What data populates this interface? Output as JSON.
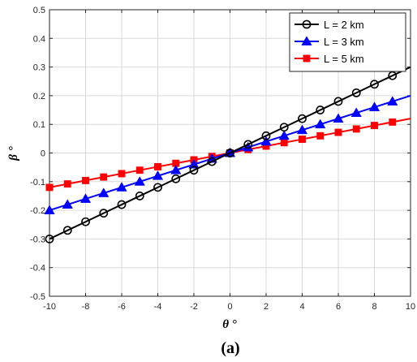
{
  "caption": "(a)",
  "chart_data": {
    "type": "line",
    "xlabel": "θ °",
    "ylabel": "β °",
    "xlim": [
      -10,
      10
    ],
    "ylim": [
      -0.5,
      0.5
    ],
    "xticks": [
      -10,
      -8,
      -6,
      -4,
      -2,
      0,
      2,
      4,
      6,
      8,
      10
    ],
    "yticks": [
      -0.5,
      -0.4,
      -0.3,
      -0.2,
      -0.1,
      0,
      0.1,
      0.2,
      0.3,
      0.4,
      0.5
    ],
    "xtick_labels": [
      "-10",
      "-8",
      "-6",
      "-4",
      "-2",
      "0",
      "2",
      "4",
      "6",
      "8",
      "10"
    ],
    "ytick_labels": [
      "-0.5",
      "-0.4",
      "-0.3",
      "-0.2",
      "-0.1",
      "0",
      "0.1",
      "0.2",
      "0.3",
      "0.4",
      "0.5"
    ],
    "grid": true,
    "legend_position": "top-right",
    "series": [
      {
        "name": "L = 2 km",
        "color": "#000000",
        "marker": "circle",
        "x": [
          -10,
          -9,
          -8,
          -7,
          -6,
          -5,
          -4,
          -3,
          -2,
          -1,
          0,
          1,
          2,
          3,
          4,
          5,
          6,
          7,
          8,
          9,
          10
        ],
        "y": [
          -0.3,
          -0.27,
          -0.24,
          -0.21,
          -0.18,
          -0.15,
          -0.12,
          -0.09,
          -0.06,
          -0.03,
          0,
          0.03,
          0.06,
          0.09,
          0.12,
          0.15,
          0.18,
          0.21,
          0.24,
          0.27,
          0.3
        ],
        "marker_x": [
          -10,
          -9,
          -8,
          -7,
          -6,
          -5,
          -4,
          -3,
          -2,
          -1,
          0,
          1,
          2,
          3,
          4,
          5,
          6,
          7,
          8,
          9
        ]
      },
      {
        "name": "L = 3 km",
        "color": "#0000ff",
        "marker": "triangle",
        "x": [
          -10,
          -9,
          -8,
          -7,
          -6,
          -5,
          -4,
          -3,
          -2,
          -1,
          0,
          1,
          2,
          3,
          4,
          5,
          6,
          7,
          8,
          9,
          10
        ],
        "y": [
          -0.2,
          -0.18,
          -0.16,
          -0.14,
          -0.12,
          -0.1,
          -0.08,
          -0.06,
          -0.04,
          -0.02,
          0,
          0.02,
          0.04,
          0.06,
          0.08,
          0.1,
          0.12,
          0.14,
          0.16,
          0.18,
          0.2
        ],
        "marker_x": [
          -10,
          -9,
          -8,
          -7,
          -6,
          -5,
          -4,
          -3,
          -2,
          -1,
          0,
          1,
          2,
          3,
          4,
          5,
          6,
          7,
          8,
          9
        ]
      },
      {
        "name": "L = 5 km",
        "color": "#ff0000",
        "marker": "square",
        "x": [
          -10,
          -9,
          -8,
          -7,
          -6,
          -5,
          -4,
          -3,
          -2,
          -1,
          0,
          1,
          2,
          3,
          4,
          5,
          6,
          7,
          8,
          9,
          10
        ],
        "y": [
          -0.12,
          -0.108,
          -0.096,
          -0.084,
          -0.072,
          -0.06,
          -0.048,
          -0.036,
          -0.024,
          -0.012,
          0,
          0.012,
          0.024,
          0.036,
          0.048,
          0.06,
          0.072,
          0.084,
          0.096,
          0.108,
          0.12
        ],
        "marker_x": [
          -10,
          -9,
          -8,
          -7,
          -6,
          -5,
          -4,
          -3,
          -2,
          -1,
          0,
          1,
          2,
          3,
          4,
          5,
          6,
          7,
          8,
          9
        ]
      }
    ]
  }
}
